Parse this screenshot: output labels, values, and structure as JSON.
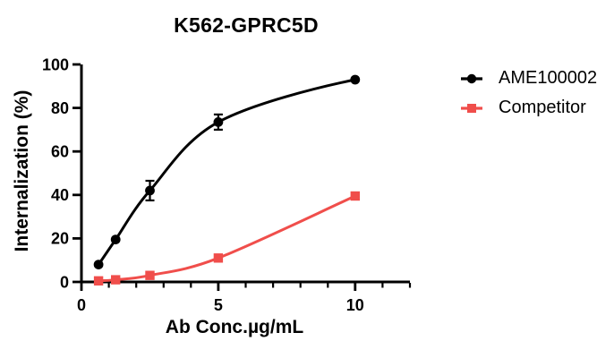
{
  "chart_data": {
    "type": "line",
    "title": "K562-GPRC5D",
    "xlabel": "Ab Conc.µg/mL",
    "ylabel": "Internalization (%)",
    "grid": false,
    "legend_position": "right",
    "x_axis": {
      "min": 0,
      "max": 12,
      "major_ticks": [
        0,
        5,
        10
      ],
      "minor_tick_step": 1
    },
    "y_axis": {
      "min": 0,
      "max": 100,
      "major_ticks": [
        0,
        20,
        40,
        60,
        80,
        100
      ],
      "minor_tick_step": null
    },
    "series": [
      {
        "name": "AME100002",
        "color": "#000000",
        "marker": "circle",
        "x": [
          0.625,
          1.25,
          2.5,
          5,
          10
        ],
        "y": [
          8,
          19.5,
          42,
          73.5,
          93
        ],
        "y_err": [
          0,
          0,
          4.5,
          3.5,
          0
        ],
        "fit_tail": [
          13,
          94
        ]
      },
      {
        "name": "Competitor",
        "color": "#F04E4B",
        "marker": "square",
        "x": [
          0.625,
          1.25,
          2.5,
          5,
          10
        ],
        "y": [
          0.5,
          1,
          3,
          11,
          39.5
        ],
        "y_err": [
          0,
          0,
          0,
          0,
          0
        ],
        "fit_tail": [
          13,
          57
        ]
      }
    ]
  }
}
